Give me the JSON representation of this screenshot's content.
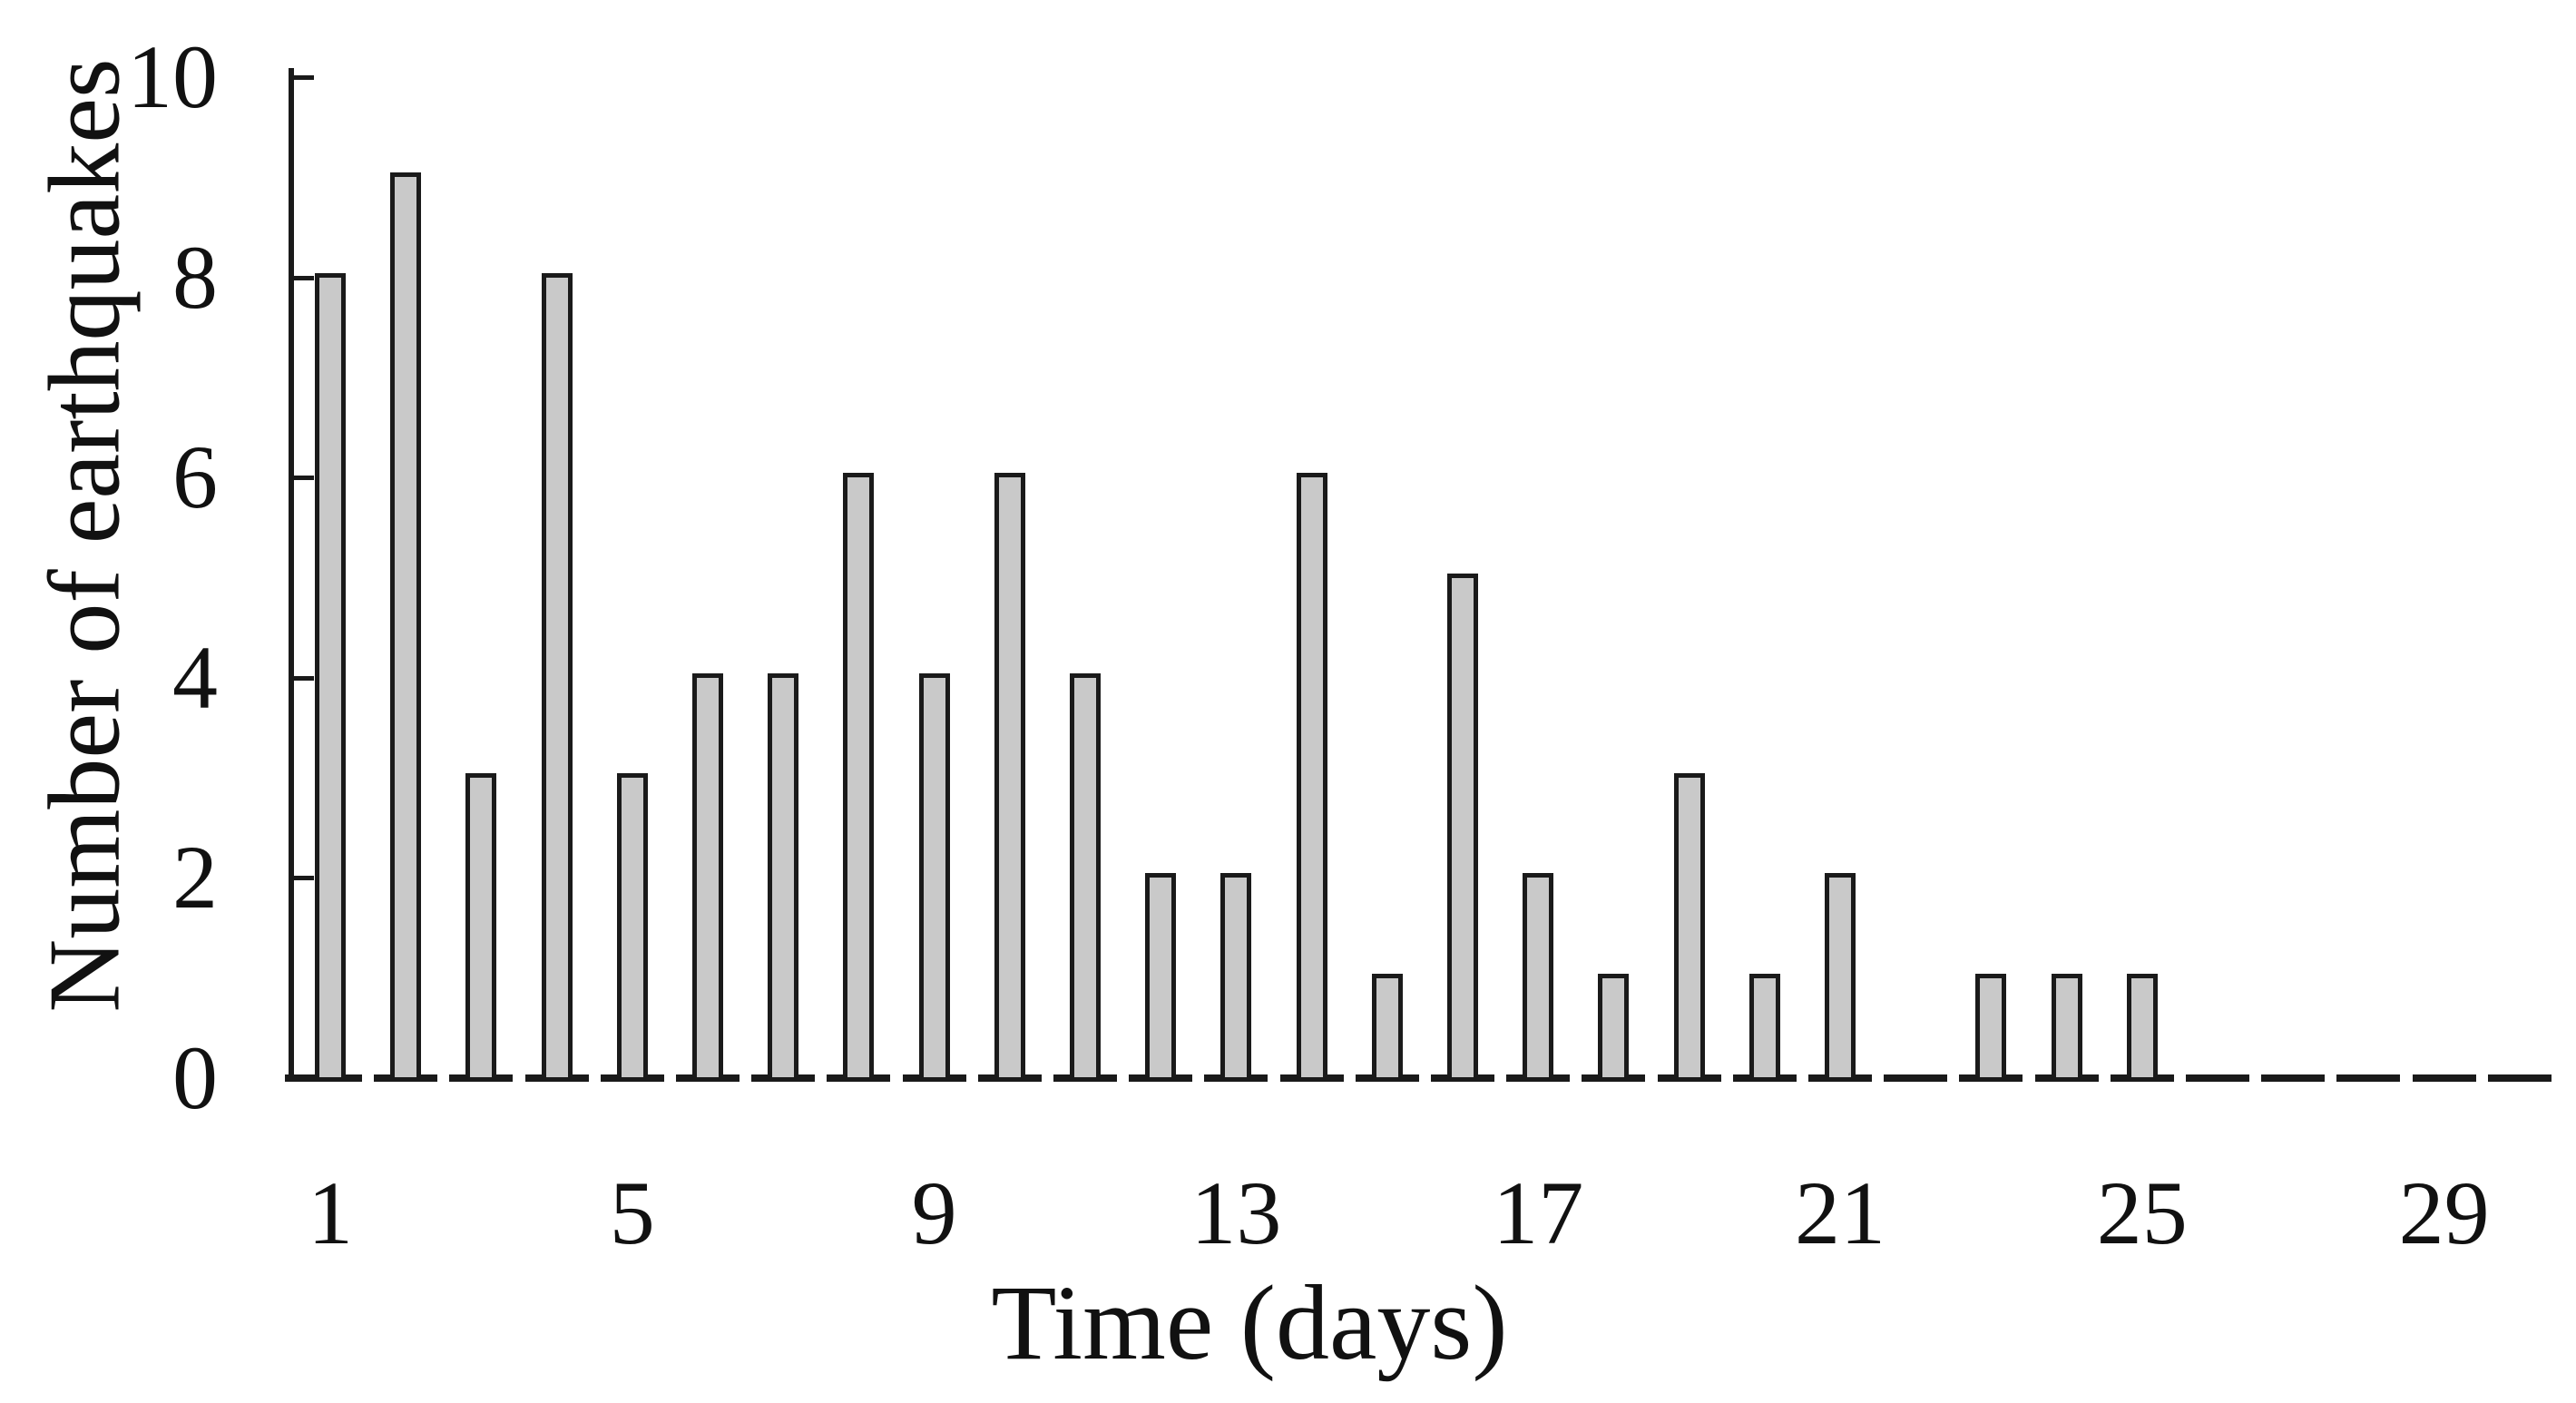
{
  "chart_data": {
    "type": "bar",
    "title": "",
    "xlabel": "Time (days)",
    "ylabel": "Number of earthquakes",
    "categories": [
      1,
      2,
      3,
      4,
      5,
      6,
      7,
      8,
      9,
      10,
      11,
      12,
      13,
      14,
      15,
      16,
      17,
      18,
      19,
      20,
      21,
      22,
      23,
      24,
      25,
      26,
      27,
      28,
      29,
      30
    ],
    "values": [
      8,
      9,
      3,
      8,
      3,
      4,
      4,
      6,
      4,
      6,
      4,
      2,
      2,
      6,
      1,
      5,
      2,
      1,
      3,
      1,
      2,
      0,
      1,
      1,
      1,
      0,
      0,
      0,
      0,
      0
    ],
    "x_tick_days": [
      1,
      5,
      9,
      13,
      17,
      21,
      25,
      29
    ],
    "x_tick_labels": [
      "1",
      "5",
      "9",
      "13",
      "17",
      "21",
      "25",
      "29"
    ],
    "y_ticks": [
      0,
      2,
      4,
      6,
      8,
      10
    ],
    "y_tick_labels": [
      "0",
      "2",
      "4",
      "6",
      "8",
      "10"
    ],
    "ylim": [
      0,
      10
    ],
    "xlim": [
      1,
      30
    ],
    "grid": false,
    "legend_position": "none",
    "colors": {
      "bar_fill": "#c9c9c9",
      "bar_outline": "#1a1a1a",
      "axis": "#1a1a1a",
      "text": "#111111",
      "background": "#ffffff"
    }
  }
}
